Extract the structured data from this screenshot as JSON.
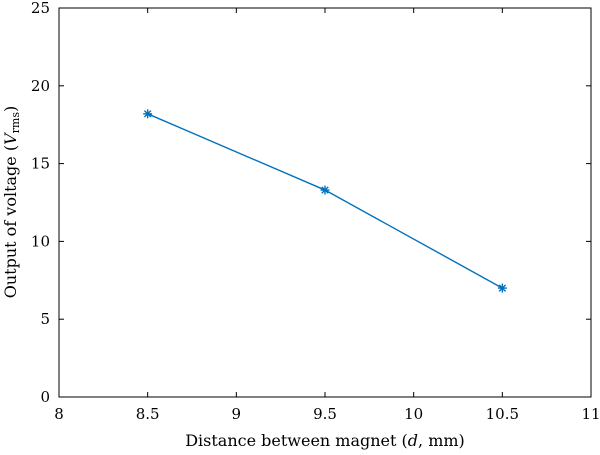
{
  "chart_data": {
    "type": "line",
    "xlabel": "Distance between magnet (d, mm)",
    "xlabel_parts": {
      "before": "Distance between magnet (",
      "italic": "d",
      "after": ", mm)"
    },
    "ylabel": "Output of voltage (Vrms)",
    "ylabel_parts": {
      "before": "Output of voltage (",
      "italic": "V",
      "sub": "rms",
      "after": ")"
    },
    "xlim": [
      8,
      11
    ],
    "ylim": [
      0,
      25
    ],
    "xticks": [
      8,
      8.5,
      9,
      9.5,
      10,
      10.5,
      11
    ],
    "xtick_labels": [
      "8",
      "8.5",
      "9",
      "9.5",
      "10",
      "10.5",
      "11"
    ],
    "yticks": [
      0,
      5,
      10,
      15,
      20,
      25
    ],
    "ytick_labels": [
      "0",
      "5",
      "10",
      "15",
      "20",
      "25"
    ],
    "grid": false,
    "series": [
      {
        "color": "#0072BD",
        "marker": "asterisk",
        "x": [
          8.5,
          9.5,
          10.5
        ],
        "y": [
          18.2,
          13.3,
          7.0
        ]
      }
    ]
  }
}
